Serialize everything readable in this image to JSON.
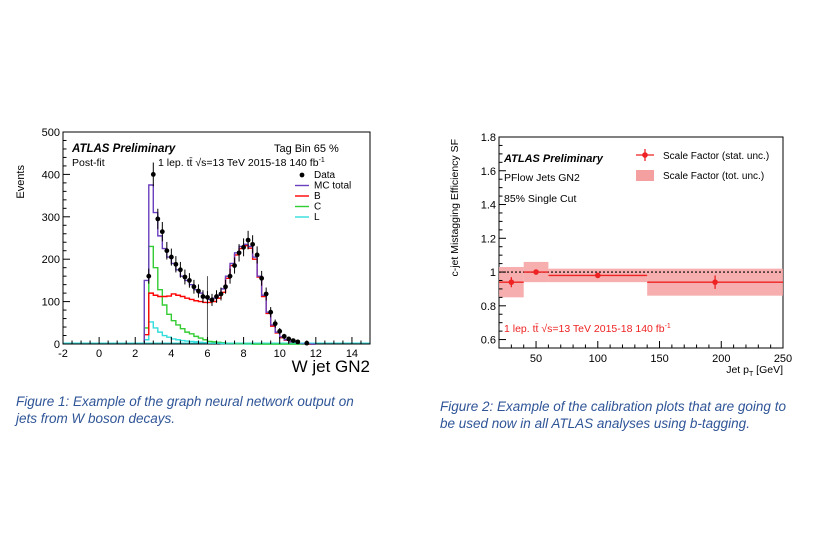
{
  "chart_data": [
    {
      "type": "histogram",
      "xlabel": "W jet GN2",
      "ylabel": "Events",
      "xlim": [
        -2,
        15
      ],
      "ylim": [
        0,
        500
      ],
      "xticks": [
        "-2",
        "0",
        "2",
        "4",
        "6",
        "8",
        "10",
        "12",
        "14"
      ],
      "yticks": [
        "0",
        "100",
        "200",
        "300",
        "400",
        "500"
      ],
      "annotations": {
        "experiment": "ATLAS Preliminary",
        "fit": "Post-fit",
        "tag_bin": "Tag Bin 65 %",
        "selection": "1 lep. tt̄ √s=13 TeV 2015-18 140 fb",
        "lumi_exp": "-1"
      },
      "legend": [
        {
          "label": "Data",
          "style": "marker",
          "color": "#000000"
        },
        {
          "label": "MC total",
          "style": "line",
          "color": "#6a3fbf"
        },
        {
          "label": "B",
          "style": "line",
          "color": "#ff0000"
        },
        {
          "label": "C",
          "style": "line",
          "color": "#33cc33"
        },
        {
          "label": "L",
          "style": "line",
          "color": "#33dddd"
        }
      ],
      "legend_position": "top-right",
      "bin_edges": [
        2.5,
        2.75,
        3.0,
        3.25,
        3.5,
        3.75,
        4.0,
        4.25,
        4.5,
        4.75,
        5.0,
        5.25,
        5.5,
        5.75,
        6.0,
        6.25,
        6.5,
        6.75,
        7.0,
        7.25,
        7.5,
        7.75,
        8.0,
        8.25,
        8.5,
        8.75,
        9.0,
        9.25,
        9.5,
        9.75,
        10.0,
        10.25,
        10.5,
        10.75,
        11.0,
        11.25,
        11.5,
        11.75,
        12.0
      ],
      "series": [
        {
          "name": "MC total",
          "values": [
            150,
            375,
            310,
            255,
            225,
            205,
            190,
            175,
            160,
            150,
            140,
            128,
            120,
            110,
            105,
            108,
            115,
            130,
            160,
            190,
            215,
            230,
            235,
            230,
            205,
            160,
            115,
            75,
            45,
            28,
            17,
            10,
            6,
            4,
            2,
            1,
            1,
            0
          ]
        },
        {
          "name": "B",
          "values": [
            22,
            120,
            115,
            112,
            112,
            113,
            118,
            115,
            112,
            108,
            105,
            102,
            100,
            98,
            98,
            100,
            108,
            122,
            155,
            185,
            210,
            225,
            232,
            226,
            200,
            158,
            112,
            72,
            42,
            26,
            15,
            9,
            5,
            3,
            2,
            1,
            0,
            0
          ]
        },
        {
          "name": "C",
          "values": [
            38,
            230,
            180,
            128,
            92,
            70,
            55,
            45,
            36,
            28,
            24,
            18,
            14,
            10,
            6,
            5,
            4,
            3,
            2,
            2,
            1,
            1,
            1,
            1,
            0,
            0,
            0,
            0,
            0,
            0,
            0,
            0,
            0,
            0,
            0,
            0,
            0,
            0
          ]
        },
        {
          "name": "L",
          "values": [
            10,
            52,
            38,
            28,
            20,
            16,
            12,
            10,
            8,
            7,
            6,
            5,
            4,
            3,
            2,
            2,
            2,
            1,
            1,
            1,
            1,
            1,
            0,
            0,
            0,
            0,
            0,
            0,
            0,
            0,
            0,
            0,
            0,
            0,
            0,
            0,
            0,
            0
          ]
        },
        {
          "name": "Data",
          "x": [
            2.75,
            3.0,
            3.25,
            3.5,
            3.75,
            4.0,
            4.25,
            4.5,
            4.75,
            5.0,
            5.25,
            5.5,
            5.75,
            6.0,
            6.25,
            6.5,
            6.75,
            7.0,
            7.25,
            7.5,
            7.75,
            8.0,
            8.25,
            8.5,
            8.75,
            9.0,
            9.25,
            9.5,
            9.75,
            10.0,
            10.25,
            10.5,
            10.75,
            11.0,
            11.5
          ],
          "values": [
            160,
            400,
            295,
            265,
            220,
            205,
            188,
            175,
            158,
            150,
            135,
            125,
            112,
            110,
            104,
            112,
            118,
            135,
            160,
            185,
            215,
            228,
            245,
            235,
            210,
            155,
            118,
            75,
            48,
            30,
            18,
            12,
            8,
            5,
            2
          ]
        }
      ],
      "marker_line_x": 6.0
    },
    {
      "type": "scatter",
      "xlabel": "Jet p",
      "xlabel_sub": "T",
      "xlabel_unit": " [GeV]",
      "ylabel": "c-jet Mistagging Efficiency SF",
      "xlim": [
        20,
        250
      ],
      "ylim": [
        0.55,
        1.8
      ],
      "xticks": [
        "50",
        "100",
        "150",
        "200",
        "250"
      ],
      "yticks": [
        "0.6",
        "0.8",
        "1",
        "1.2",
        "1.4",
        "1.6",
        "1.8"
      ],
      "annotations": {
        "experiment": "ATLAS Preliminary",
        "jets": "PFlow Jets GN2",
        "cut": "85% Single Cut",
        "selection": "1 lep. tt̄ √s=13 TeV 2015-18  140 fb",
        "lumi_exp": "-1"
      },
      "legend": [
        {
          "label": "Scale Factor (stat. unc.)",
          "style": "marker",
          "color": "#ee2222"
        },
        {
          "label": "Scale Factor (tot. unc.)",
          "style": "band",
          "color": "#f4a0a0"
        }
      ],
      "legend_position": "top-right",
      "reference_line": 1.0,
      "points": [
        {
          "xlo": 20,
          "xhi": 40,
          "x": 30,
          "y": 0.94,
          "stat": 0.03,
          "tot": 0.09
        },
        {
          "xlo": 40,
          "xhi": 60,
          "x": 50,
          "y": 1.0,
          "stat": 0.015,
          "tot": 0.06
        },
        {
          "xlo": 60,
          "xhi": 140,
          "x": 100,
          "y": 0.98,
          "stat": 0.015,
          "tot": 0.04
        },
        {
          "xlo": 140,
          "xhi": 250,
          "x": 195,
          "y": 0.94,
          "stat": 0.04,
          "tot": 0.08
        }
      ]
    }
  ],
  "captions": {
    "fig1": "Figure 1: Example of the graph neural network output on jets from W boson decays.",
    "fig2": "Figure 2: Example of the calibration plots that are going to be used now in all ATLAS analyses using b-tagging."
  }
}
